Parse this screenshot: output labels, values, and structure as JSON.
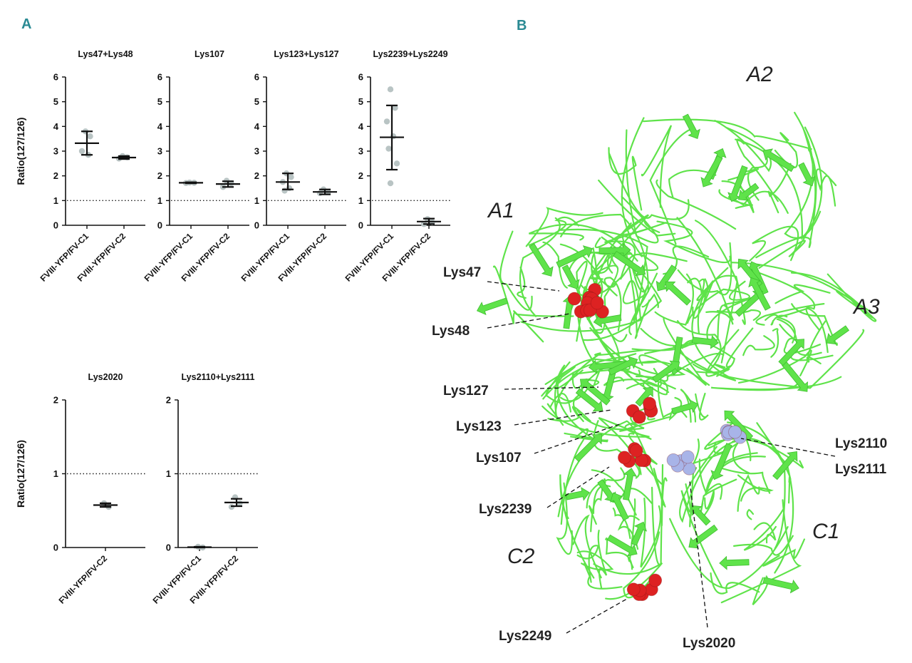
{
  "panels": {
    "a": "A",
    "b": "B"
  },
  "chart_data": [
    {
      "type": "scatter",
      "title": "Lys47+Lys48",
      "ylabel": "Ratio(127/126)",
      "ylim": [
        0,
        6
      ],
      "yticks": [
        "0",
        "1",
        "2",
        "3",
        "4",
        "5",
        "6"
      ],
      "reference_line": 1,
      "categories": [
        "FVIII-YFP/FV-C1",
        "FVIII-YFP/FV-C2"
      ],
      "groups": [
        {
          "category": "FVIII-YFP/FV-C1",
          "points": [
            3.8,
            3.6,
            3.0,
            2.85
          ],
          "mean": 3.32,
          "err_low": 2.85,
          "err_high": 3.8
        },
        {
          "category": "FVIII-YFP/FV-C2",
          "points": [
            2.8,
            2.75,
            2.7
          ],
          "mean": 2.74,
          "err_low": 2.68,
          "err_high": 2.8
        }
      ]
    },
    {
      "type": "scatter",
      "title": "Lys107",
      "ylabel": "",
      "ylim": [
        0,
        6
      ],
      "yticks": [
        "0",
        "1",
        "2",
        "3",
        "4",
        "5",
        "6"
      ],
      "reference_line": 1,
      "categories": [
        "FVIII-YFP/FV-C1",
        "FVIII-YFP/FV-C2"
      ],
      "groups": [
        {
          "category": "FVIII-YFP/FV-C1",
          "points": [
            1.73,
            1.72,
            1.71
          ],
          "mean": 1.72,
          "err_low": 1.7,
          "err_high": 1.74
        },
        {
          "category": "FVIII-YFP/FV-C2",
          "points": [
            1.8,
            1.7,
            1.55
          ],
          "mean": 1.67,
          "err_low": 1.55,
          "err_high": 1.78
        }
      ]
    },
    {
      "type": "scatter",
      "title": "Lys123+Lys127",
      "ylabel": "",
      "ylim": [
        0,
        6
      ],
      "yticks": [
        "0",
        "1",
        "2",
        "3",
        "4",
        "5",
        "6"
      ],
      "reference_line": 1,
      "categories": [
        "FVIII-YFP/FV-C1",
        "FVIII-YFP/FV-C2"
      ],
      "groups": [
        {
          "category": "FVIII-YFP/FV-C1",
          "points": [
            2.1,
            1.95,
            1.75,
            1.5,
            1.4
          ],
          "mean": 1.75,
          "err_low": 1.45,
          "err_high": 2.1
        },
        {
          "category": "FVIII-YFP/FV-C2",
          "points": [
            1.45,
            1.35,
            1.3
          ],
          "mean": 1.35,
          "err_low": 1.25,
          "err_high": 1.45
        }
      ]
    },
    {
      "type": "scatter",
      "title": "Lys2239+Lys2249",
      "ylabel": "",
      "ylim": [
        0,
        6
      ],
      "yticks": [
        "0",
        "1",
        "2",
        "3",
        "4",
        "5",
        "6"
      ],
      "reference_line": 1,
      "categories": [
        "FVIII-YFP/FV-C1",
        "FVIII-YFP/FV-C2"
      ],
      "groups": [
        {
          "category": "FVIII-YFP/FV-C1",
          "points": [
            5.5,
            4.75,
            4.2,
            3.6,
            3.1,
            2.5,
            1.7
          ],
          "mean": 3.56,
          "err_low": 2.25,
          "err_high": 4.85
        },
        {
          "category": "FVIII-YFP/FV-C2",
          "points": [
            0.25,
            0.12,
            0.05
          ],
          "mean": 0.15,
          "err_low": 0.05,
          "err_high": 0.27
        }
      ]
    },
    {
      "type": "scatter",
      "title": "Lys2020",
      "ylabel": "Ratio(127/126)",
      "ylim": [
        0,
        2
      ],
      "yticks": [
        "0",
        "1",
        "2"
      ],
      "reference_line": 1,
      "categories": [
        "FVIII-YFP/FV-C2"
      ],
      "groups": [
        {
          "category": "FVIII-YFP/FV-C2",
          "points": [
            0.6,
            0.55
          ],
          "mean": 0.575,
          "err_low": 0.55,
          "err_high": 0.6
        }
      ]
    },
    {
      "type": "scatter",
      "title": "Lys2110+Lys2111",
      "ylabel": "",
      "ylim": [
        0,
        2
      ],
      "yticks": [
        "0",
        "1",
        "2"
      ],
      "reference_line": 1,
      "categories": [
        "FVIII-YFP/FV-C1",
        "FVIII-YFP/FV-C2"
      ],
      "groups": [
        {
          "category": "FVIII-YFP/FV-C1",
          "points": [
            0.01,
            0.0
          ],
          "mean": 0.005,
          "err_low": 0.0,
          "err_high": 0.01
        },
        {
          "category": "FVIII-YFP/FV-C2",
          "points": [
            0.68,
            0.6,
            0.55
          ],
          "mean": 0.61,
          "err_low": 0.56,
          "err_high": 0.66
        }
      ]
    }
  ],
  "structure": {
    "domains": [
      "A1",
      "A2",
      "A3",
      "C1",
      "C2"
    ],
    "residues": [
      {
        "label": "Lys47",
        "color": "#dd2222"
      },
      {
        "label": "Lys48",
        "color": "#dd2222"
      },
      {
        "label": "Lys127",
        "color": "#dd2222"
      },
      {
        "label": "Lys123",
        "color": "#dd2222"
      },
      {
        "label": "Lys107",
        "color": "#dd2222"
      },
      {
        "label": "Lys2239",
        "color": "#dd2222"
      },
      {
        "label": "Lys2249",
        "color": "#dd2222"
      },
      {
        "label": "Lys2020",
        "color": "#a8b4e8"
      },
      {
        "label": "Lys2110",
        "color": "#a8b4e8"
      },
      {
        "label": "Lys2111",
        "color": "#a8b4e8"
      }
    ],
    "ribbon_color": "#5fe34a"
  },
  "colors": {
    "panel_letter": "#2a8a93",
    "points": "#b9c4c4",
    "lines": "#111111",
    "reference": "#222222"
  }
}
